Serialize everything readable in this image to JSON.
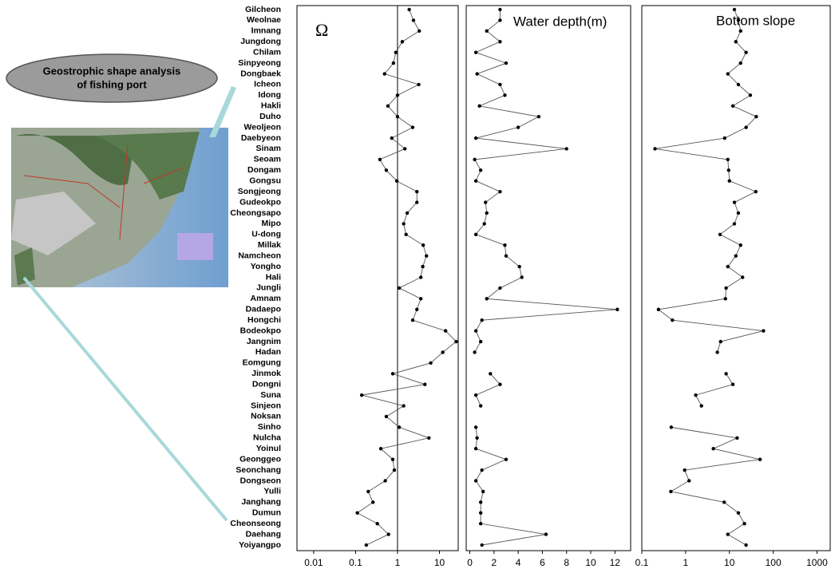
{
  "callout": {
    "lines": [
      "Geostrophic shape analysis",
      "of fishing port"
    ]
  },
  "chart_data": [
    {
      "type": "line",
      "orientation": "horizontal",
      "title": "Ω",
      "xscale": "log",
      "categories": [
        "Gilcheon",
        "Weolnae",
        "Imnang",
        "Jungdong",
        "Chilam",
        "Sinpyeong",
        "Dongbaek",
        "Icheon",
        "Idong",
        "Hakli",
        "Duho",
        "Weoljeon",
        "Daebyeon",
        "Sinam",
        "Seoam",
        "Dongam",
        "Gongsu",
        "Songjeong",
        "Gudeokpo",
        "Cheongsapo",
        "Mipo",
        "U-dong",
        "Millak",
        "Namcheon",
        "Yongho",
        "Hali",
        "Jungli",
        "Amnam",
        "Dadaepo",
        "Hongchi",
        "Bodeokpo",
        "Jangnim",
        "Hadan",
        "Eomgung",
        "Jinmok",
        "Dongni",
        "Suna",
        "Sinjeon",
        "Noksan",
        "Sinho",
        "Nulcha",
        "Yoinul",
        "Geonggeo",
        "Seonchang",
        "Dongseon",
        "Yulli",
        "Janghang",
        "Dumun",
        "Cheonseong",
        "Daehang",
        "Yoiyangpo"
      ],
      "xlim": [
        0.004,
        28
      ],
      "xticks": [
        0.01,
        0.1,
        1,
        10
      ],
      "refline": 1,
      "series": [
        {
          "color": "#000000",
          "values": [
            1.9,
            2.4,
            3.3,
            1.3,
            0.91,
            0.8,
            0.49,
            3.2,
            1.0,
            0.59,
            1.0,
            2.3,
            0.73,
            1.5,
            0.38,
            0.54,
            0.96,
            2.9,
            2.9,
            1.7,
            1.4,
            1.6,
            4.1,
            4.9,
            4.0,
            3.6,
            1.1,
            3.6,
            2.9,
            2.3,
            14,
            25,
            12,
            6.2,
            0.77,
            4.5,
            0.14,
            1.4,
            0.54,
            1.1,
            5.6,
            0.4,
            0.77,
            0.84,
            0.51,
            0.2,
            0.26,
            0.11,
            0.33,
            0.61,
            0.18
          ]
        }
      ]
    },
    {
      "type": "line",
      "orientation": "horizontal",
      "title": "Water depth(m)",
      "xscale": "linear",
      "xlim": [
        -0.3,
        13.3
      ],
      "xticks": [
        0,
        2,
        4,
        6,
        8,
        10,
        12
      ],
      "series": [
        {
          "color": "#000000",
          "values": [
            2.5,
            2.5,
            1.4,
            2.5,
            0.5,
            3.0,
            0.6,
            2.5,
            2.9,
            0.8,
            5.7,
            4.0,
            0.5,
            8.0,
            0.4,
            0.9,
            0.5,
            2.5,
            1.3,
            1.4,
            1.2,
            0.5,
            2.9,
            3.0,
            4.1,
            4.3,
            2.5,
            1.4,
            12.2,
            1.0,
            0.5,
            0.9,
            0.4,
            null,
            1.7,
            2.5,
            0.5,
            0.9,
            null,
            0.5,
            0.6,
            0.5,
            3.0,
            1.0,
            0.5,
            1.1,
            0.9,
            0.9,
            0.9,
            6.3,
            1.0
          ]
        }
      ]
    },
    {
      "type": "line",
      "orientation": "horizontal",
      "title": "Bottom slope",
      "xscale": "log",
      "xlim": [
        0.1,
        2000
      ],
      "xticks": [
        0.1,
        1,
        10,
        100,
        1000
      ],
      "series": [
        {
          "color": "#000000",
          "values": [
            13,
            16,
            18,
            14,
            24,
            18,
            9.2,
            16,
            30,
            12,
            41,
            24,
            7.8,
            0.2,
            9.2,
            9.6,
            10,
            40,
            13,
            16,
            13,
            6.1,
            18,
            14,
            9.2,
            20,
            8.4,
            8.1,
            0.24,
            0.5,
            60,
            6.3,
            5.3,
            null,
            8.4,
            12,
            1.7,
            2.3,
            null,
            0.47,
            15,
            4.3,
            50,
            0.95,
            1.2,
            0.46,
            7.6,
            16,
            22,
            9.2,
            24
          ]
        }
      ]
    }
  ]
}
